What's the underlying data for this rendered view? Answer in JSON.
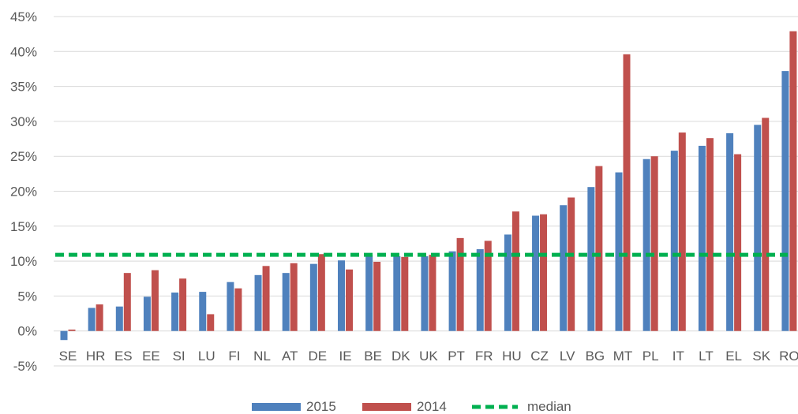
{
  "chart_data": {
    "type": "bar",
    "categories": [
      "SE",
      "HR",
      "ES",
      "EE",
      "SI",
      "LU",
      "FI",
      "NL",
      "AT",
      "DE",
      "IE",
      "BE",
      "DK",
      "UK",
      "PT",
      "FR",
      "HU",
      "CZ",
      "LV",
      "BG",
      "MT",
      "PL",
      "IT",
      "LT",
      "EL",
      "SK",
      "RO"
    ],
    "series": [
      {
        "name": "2015",
        "color": "#4f81bd",
        "values": [
          -1.3,
          3.3,
          3.5,
          4.9,
          5.5,
          5.6,
          7.0,
          8.0,
          8.3,
          9.6,
          10.1,
          10.9,
          10.7,
          10.7,
          11.4,
          11.7,
          13.8,
          16.5,
          18.0,
          20.6,
          22.7,
          24.6,
          25.8,
          26.5,
          28.3,
          29.5,
          37.2
        ]
      },
      {
        "name": "2014",
        "color": "#c0504d",
        "values": [
          0.2,
          3.8,
          8.3,
          8.7,
          7.5,
          2.4,
          6.1,
          9.3,
          9.7,
          11.0,
          8.8,
          9.9,
          10.6,
          10.9,
          13.3,
          12.9,
          17.1,
          16.7,
          19.1,
          23.6,
          39.6,
          25.0,
          28.4,
          27.6,
          25.3,
          30.5,
          42.9
        ]
      }
    ],
    "median": {
      "name": "median",
      "value": 10.9,
      "color": "#00b050"
    },
    "ylim": [
      -5,
      45
    ],
    "yticks": [
      -5,
      0,
      5,
      10,
      15,
      20,
      25,
      30,
      35,
      40,
      45
    ],
    "ytick_labels": [
      "-5%",
      "0%",
      "5%",
      "10%",
      "15%",
      "20%",
      "25%",
      "30%",
      "35%",
      "40%",
      "45%"
    ],
    "title": "",
    "xlabel": "",
    "ylabel": "",
    "grid": true,
    "legend_position": "bottom"
  }
}
